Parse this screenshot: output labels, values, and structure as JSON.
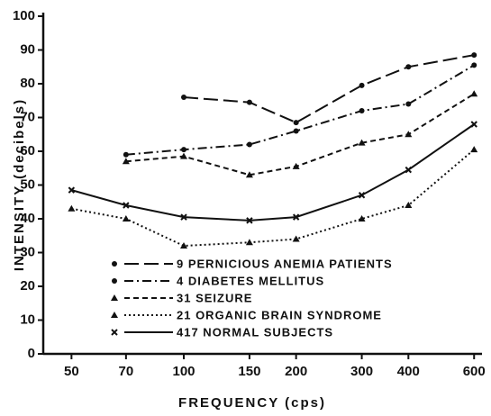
{
  "chart_data": {
    "type": "line",
    "y_label": "INTENSITY (decibels)",
    "x_label": "FREQUENCY (cps)",
    "x": [
      50,
      70,
      100,
      150,
      200,
      300,
      400,
      600
    ],
    "xlim": [
      42,
      630
    ],
    "xticks": [
      50,
      70,
      100,
      150,
      200,
      300,
      400,
      600
    ],
    "log_x": true,
    "ylim": [
      0,
      100
    ],
    "yticks": [
      0,
      10,
      20,
      30,
      40,
      50,
      60,
      70,
      80,
      90,
      100
    ],
    "series": [
      {
        "name": "9 PERNICIOUS ANEMIA PATIENTS",
        "color": "#111",
        "dash": "long",
        "marker": "dot",
        "values": [
          null,
          null,
          76,
          74.5,
          68.5,
          79.5,
          85,
          88.5
        ]
      },
      {
        "name": "4 DIABETES MELLITUS",
        "color": "#111",
        "dash": "dashdot",
        "marker": "dot",
        "values": [
          null,
          59,
          60.5,
          62,
          66,
          72,
          74,
          85.5
        ]
      },
      {
        "name": "31 SEIZURE",
        "color": "#111",
        "dash": "short",
        "marker": "triangle",
        "values": [
          null,
          57,
          58.5,
          53,
          55.5,
          62.5,
          65,
          77
        ]
      },
      {
        "name": "21 ORGANIC BRAIN SYNDROME",
        "color": "#111",
        "dash": "dotted",
        "marker": "triangle",
        "values": [
          43,
          40,
          32,
          33,
          34,
          40,
          44,
          60.5
        ]
      },
      {
        "name": "417 NORMAL SUBJECTS",
        "color": "#111",
        "dash": "solid",
        "marker": "x",
        "values": [
          48.5,
          44,
          40.5,
          39.5,
          40.5,
          47,
          54.5,
          68
        ]
      }
    ]
  }
}
